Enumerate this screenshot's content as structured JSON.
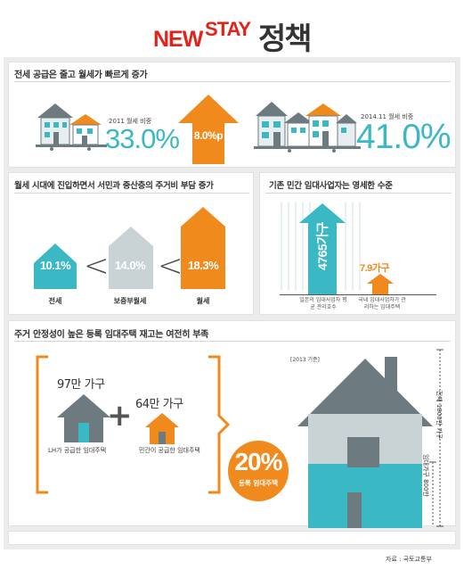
{
  "header": {
    "title_new": "NEW",
    "title_stay": "STAY",
    "title_policy": "정책"
  },
  "section1": {
    "title": "전세 공급은 줄고 월세가 빠르게 증가",
    "left_label": "2011 월세 비중",
    "left_value": "33.0%",
    "arrow_value": "8.0%p",
    "right_label": "2014.11 월세 비중",
    "right_value": "41.0%"
  },
  "section2": {
    "title": "월세 시대에 진입하면서 서민과 중산층의 주거비 부담 증가",
    "bars": [
      {
        "value": "10.1%",
        "label": "전세",
        "level": 10.1,
        "color": "#3ab8c4"
      },
      {
        "value": "14.0%",
        "label": "보증부월세",
        "level": 14.0,
        "color": "#c9d2d4"
      },
      {
        "value": "18.3%",
        "label": "월세",
        "level": 18.3,
        "color": "#f08a1c"
      }
    ],
    "lt": "<"
  },
  "section3": {
    "title": "기존 민간 임대사업자는 영세한 수준",
    "japan_value": "4765가구",
    "japan_caption": "일본의 임대사업자 평균 관리호수",
    "korea_value": "7.9가구",
    "korea_caption": "국내 임대사업자가 관리하는 임대주택"
  },
  "section4": {
    "title": "주거 안정성이 높은 등록 임대주택 재고는 여전히 부족",
    "lh_count": "97만 가구",
    "lh_label": "LH가 공급한 임대주택",
    "plus": "+",
    "private_count": "64만 가구",
    "private_label": "민간이 공급한 임대주택",
    "percent": "20%",
    "percent_label": "등록 임대주택",
    "year_note": "[2013 기준]",
    "total_label": "전체 1800만 가구",
    "rental_label": "임대가구 800만"
  },
  "source": "자료 : 국토교통부",
  "colors": {
    "teal": "#3ab8c4",
    "orange": "#f08a1c",
    "red": "#e2231a",
    "gray": "#6d7a80"
  }
}
